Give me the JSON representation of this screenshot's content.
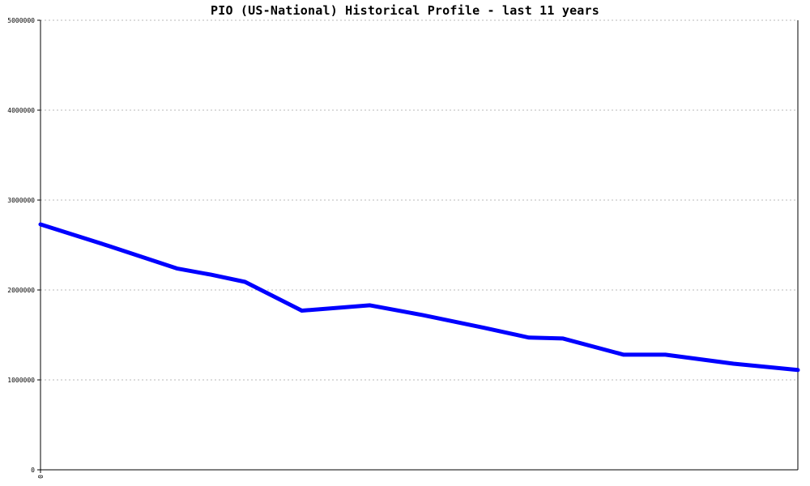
{
  "chart_data": {
    "type": "line",
    "title": "PIO (US-National) Historical Profile - last 11 years",
    "xlabel": "",
    "ylabel": "",
    "ylim": [
      0,
      5000000
    ],
    "yticks": [
      "0",
      "1000000",
      "2000000",
      "3000000",
      "4000000",
      "5000000"
    ],
    "xtick_labels": [
      "0"
    ],
    "grid": true,
    "legend": "none",
    "colors": {
      "series": "#0000ff",
      "grid": "#b8b8b8",
      "axis": "#000000"
    },
    "x": [
      0,
      0.09,
      0.18,
      0.225,
      0.27,
      0.345,
      0.435,
      0.505,
      0.585,
      0.645,
      0.69,
      0.77,
      0.825,
      0.915,
      1.0
    ],
    "series": [
      {
        "values": [
          2730000,
          2490000,
          2240000,
          2170000,
          2090000,
          1770000,
          1830000,
          1720000,
          1580000,
          1470000,
          1460000,
          1280000,
          1280000,
          1180000,
          1110000
        ]
      }
    ]
  }
}
